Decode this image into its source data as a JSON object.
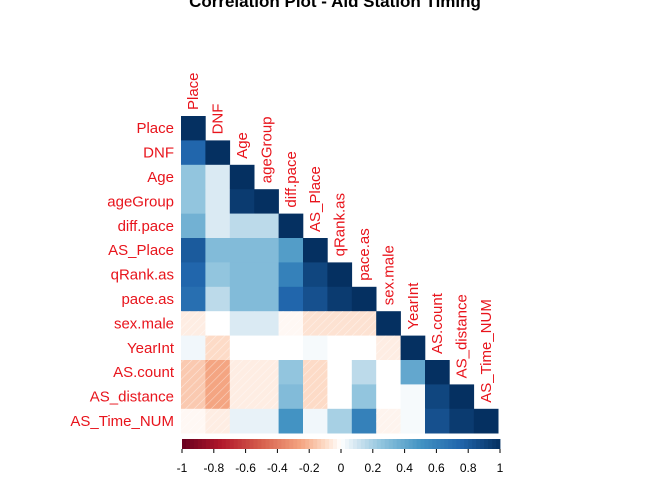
{
  "chart_data": {
    "type": "heatmap",
    "subtype": "correlation-lower-triangle",
    "title": "Correlation Plot - Aid Station Timing",
    "variables": [
      "Place",
      "DNF",
      "Age",
      "ageGroup",
      "diff.pace",
      "AS_Place",
      "qRank.as",
      "pace.as",
      "sex.male",
      "YearInt",
      "AS.count",
      "AS_distance",
      "AS_Time_NUM"
    ],
    "matrix": [
      [
        1
      ],
      [
        0.75,
        1
      ],
      [
        0.25,
        0.08,
        1
      ],
      [
        0.25,
        0.08,
        0.95,
        1
      ],
      [
        0.35,
        0.08,
        0.15,
        0.15,
        1
      ],
      [
        0.8,
        0.3,
        0.3,
        0.3,
        0.45,
        1
      ],
      [
        0.75,
        0.25,
        0.3,
        0.3,
        0.6,
        0.9,
        1
      ],
      [
        0.7,
        0.15,
        0.3,
        0.3,
        0.75,
        0.85,
        0.95,
        1
      ],
      [
        -0.05,
        0.0,
        0.08,
        0.08,
        -0.02,
        -0.08,
        -0.08,
        -0.08,
        1
      ],
      [
        0.03,
        -0.1,
        0.0,
        0.0,
        0.0,
        0.02,
        0.0,
        0.0,
        -0.05,
        1
      ],
      [
        -0.15,
        -0.25,
        -0.05,
        -0.05,
        0.25,
        -0.1,
        0.0,
        0.15,
        0.0,
        0.4,
        1
      ],
      [
        -0.15,
        -0.25,
        -0.05,
        -0.05,
        0.3,
        -0.1,
        0.0,
        0.25,
        0.0,
        0.02,
        0.9,
        1
      ],
      [
        -0.02,
        -0.05,
        0.05,
        0.05,
        0.5,
        0.03,
        0.2,
        0.6,
        -0.03,
        0.02,
        0.85,
        0.95,
        1
      ]
    ],
    "colorbar": {
      "ticks": [
        "-1",
        "-0.8",
        "-0.6",
        "-0.4",
        "-0.2",
        "0",
        "0.2",
        "0.4",
        "0.6",
        "0.8",
        "1"
      ],
      "range": [
        -1,
        1
      ],
      "negative_color": "#67001f",
      "zero_color": "#ffffff",
      "positive_color": "#053061"
    },
    "label_color": "#e8141c",
    "grid": false,
    "legend_position": "bottom"
  }
}
